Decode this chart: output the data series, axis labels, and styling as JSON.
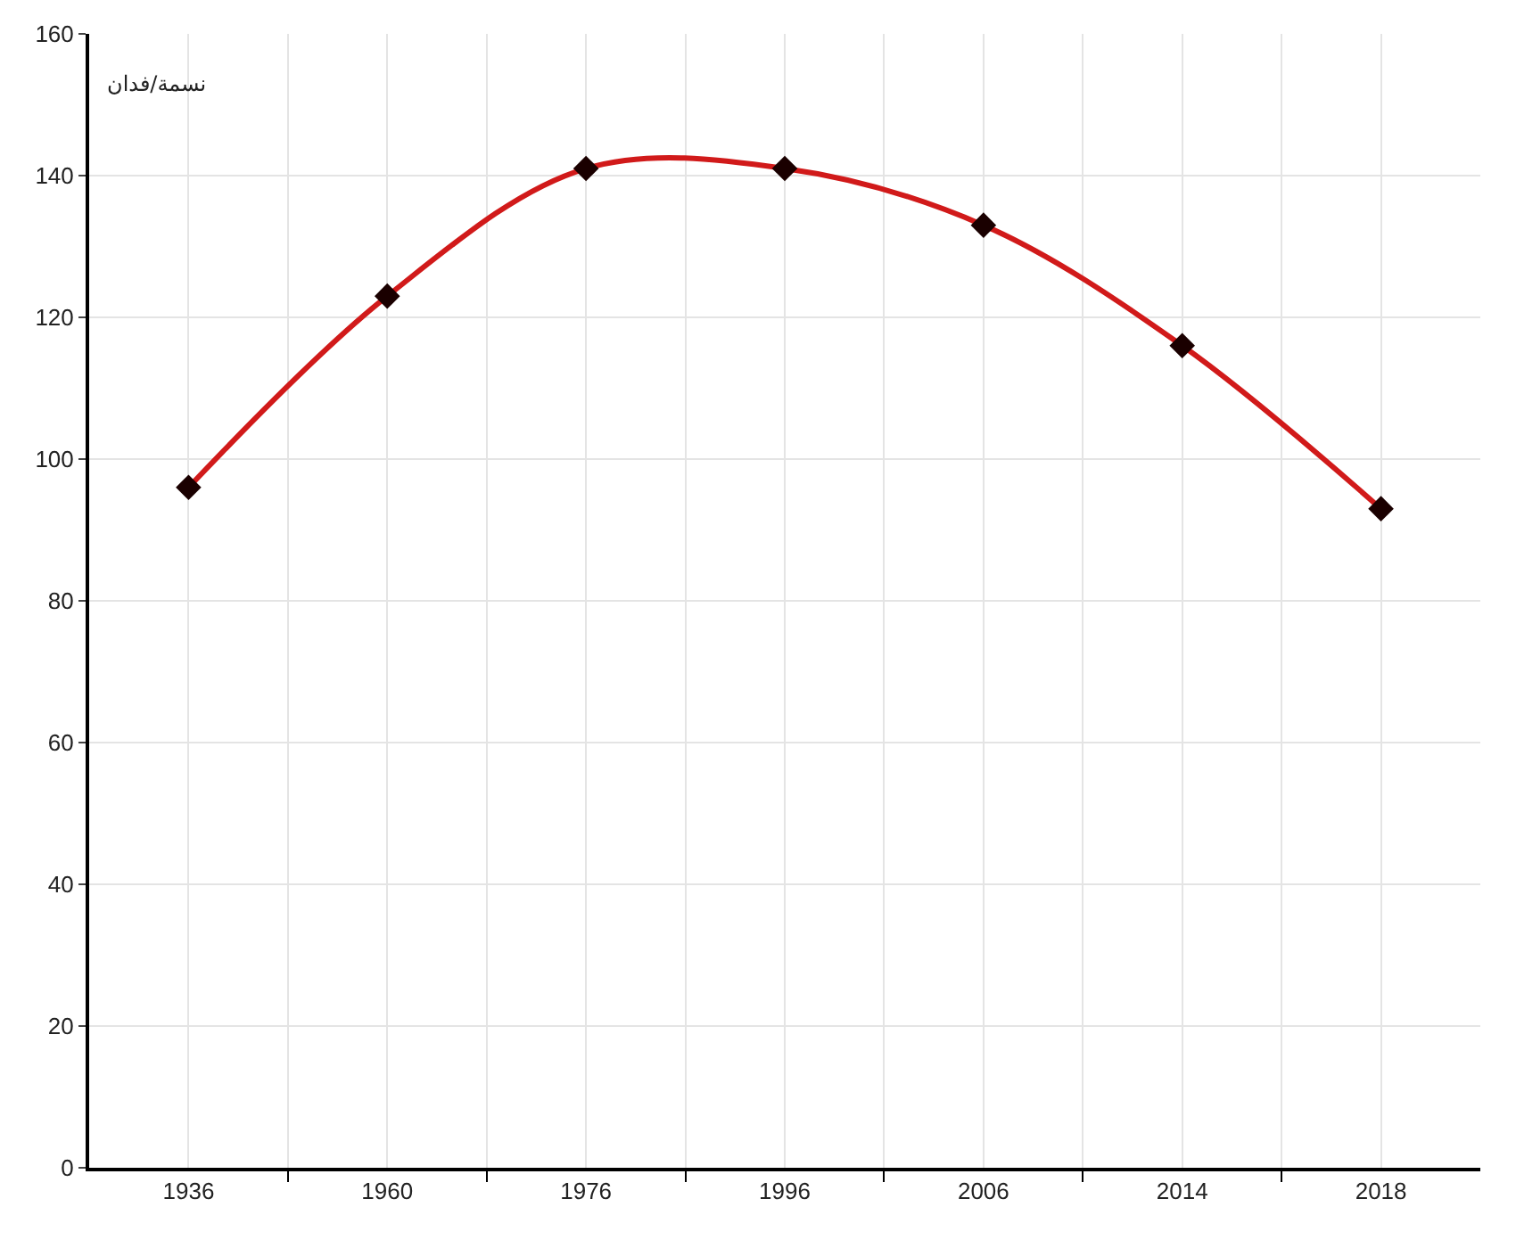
{
  "chart_data": {
    "type": "line",
    "ylabel": "نسمة/فدان",
    "categories": [
      "1936",
      "1960",
      "1976",
      "1996",
      "2006",
      "2014",
      "2018"
    ],
    "series": [
      {
        "color": "#d11a1a",
        "values": [
          96,
          123,
          141,
          141,
          133,
          116,
          93
        ]
      }
    ],
    "ylim": [
      0,
      160
    ],
    "yticks": [
      0,
      20,
      40,
      60,
      80,
      100,
      120,
      140,
      160
    ],
    "grid": true,
    "marker": "diamond",
    "line_style": "solid"
  }
}
